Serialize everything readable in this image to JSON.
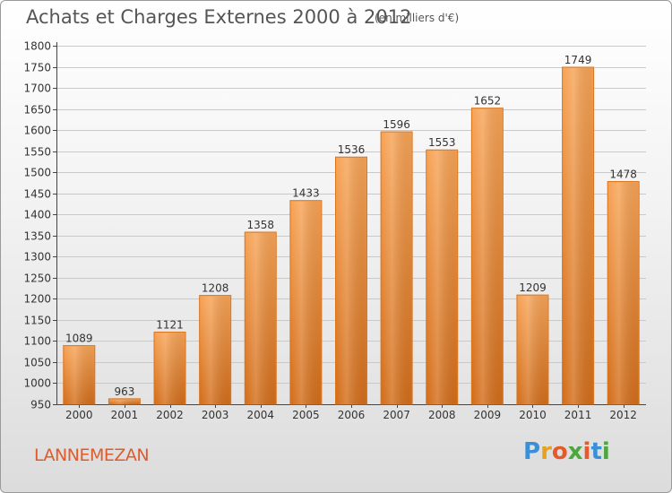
{
  "header": {
    "title": "Achats et Charges Externes 2000 à 2012",
    "subtitle": "(en milliers d'€)"
  },
  "footer": {
    "commune": "LANNEMEZAN",
    "logo_letters": [
      "P",
      "r",
      "o",
      "x",
      "i",
      "t",
      "i"
    ],
    "logo_colors": [
      "#3a8fd6",
      "#e6a21e",
      "#e55a2b",
      "#4aa83c",
      "#e55a2b",
      "#3a8fd6",
      "#4aa83c"
    ]
  },
  "colors": {
    "bar": "#f29641",
    "bar_dark": "#d9741f",
    "grid": "#c9c9c9"
  },
  "chart_data": {
    "type": "bar",
    "categories": [
      "2000",
      "2001",
      "2002",
      "2003",
      "2004",
      "2005",
      "2006",
      "2007",
      "2008",
      "2009",
      "2010",
      "2011",
      "2012"
    ],
    "values": [
      1089,
      963,
      1121,
      1208,
      1358,
      1433,
      1536,
      1596,
      1553,
      1652,
      1209,
      1749,
      1478
    ],
    "ylim": [
      950,
      1800
    ],
    "yticks": [
      950,
      1000,
      1050,
      1100,
      1150,
      1200,
      1250,
      1300,
      1350,
      1400,
      1450,
      1500,
      1550,
      1600,
      1650,
      1700,
      1750,
      1800
    ],
    "grid": true,
    "title": "Achats et Charges Externes 2000 à 2012",
    "xlabel": "",
    "ylabel": ""
  }
}
